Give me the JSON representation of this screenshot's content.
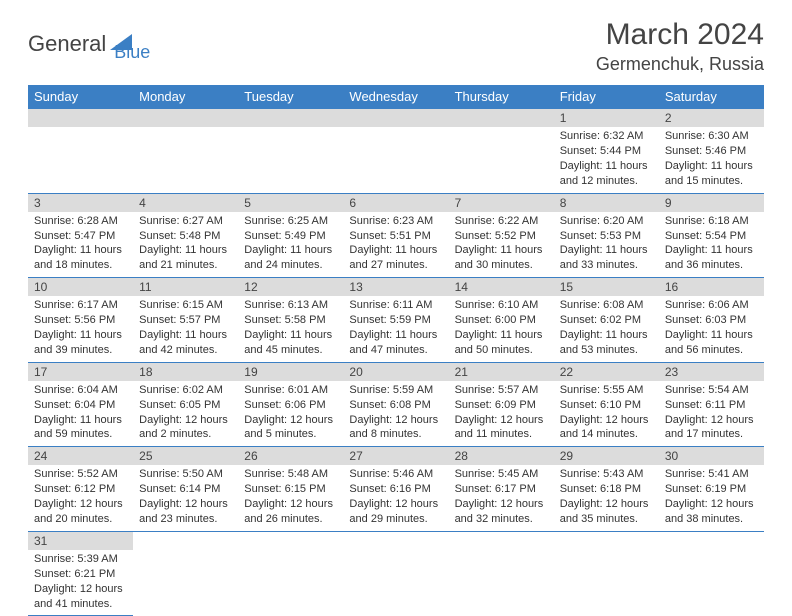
{
  "brand": {
    "general": "General",
    "blue": "Blue"
  },
  "title": "March 2024",
  "location": "Germenchuk, Russia",
  "weekdays": [
    "Sunday",
    "Monday",
    "Tuesday",
    "Wednesday",
    "Thursday",
    "Friday",
    "Saturday"
  ],
  "colors": {
    "header_bg": "#3b7fc4",
    "header_text": "#ffffff",
    "daynum_bg": "#dcdcdc",
    "row_divider": "#3b7fc4",
    "page_bg": "#ffffff",
    "text": "#333333"
  },
  "typography": {
    "title_fontsize": 30,
    "location_fontsize": 18,
    "weekday_fontsize": 13,
    "daynum_fontsize": 12,
    "body_fontsize": 11
  },
  "weeks": [
    [
      null,
      null,
      null,
      null,
      null,
      {
        "n": "1",
        "sr": "Sunrise: 6:32 AM",
        "ss": "Sunset: 5:44 PM",
        "d1": "Daylight: 11 hours",
        "d2": "and 12 minutes."
      },
      {
        "n": "2",
        "sr": "Sunrise: 6:30 AM",
        "ss": "Sunset: 5:46 PM",
        "d1": "Daylight: 11 hours",
        "d2": "and 15 minutes."
      }
    ],
    [
      {
        "n": "3",
        "sr": "Sunrise: 6:28 AM",
        "ss": "Sunset: 5:47 PM",
        "d1": "Daylight: 11 hours",
        "d2": "and 18 minutes."
      },
      {
        "n": "4",
        "sr": "Sunrise: 6:27 AM",
        "ss": "Sunset: 5:48 PM",
        "d1": "Daylight: 11 hours",
        "d2": "and 21 minutes."
      },
      {
        "n": "5",
        "sr": "Sunrise: 6:25 AM",
        "ss": "Sunset: 5:49 PM",
        "d1": "Daylight: 11 hours",
        "d2": "and 24 minutes."
      },
      {
        "n": "6",
        "sr": "Sunrise: 6:23 AM",
        "ss": "Sunset: 5:51 PM",
        "d1": "Daylight: 11 hours",
        "d2": "and 27 minutes."
      },
      {
        "n": "7",
        "sr": "Sunrise: 6:22 AM",
        "ss": "Sunset: 5:52 PM",
        "d1": "Daylight: 11 hours",
        "d2": "and 30 minutes."
      },
      {
        "n": "8",
        "sr": "Sunrise: 6:20 AM",
        "ss": "Sunset: 5:53 PM",
        "d1": "Daylight: 11 hours",
        "d2": "and 33 minutes."
      },
      {
        "n": "9",
        "sr": "Sunrise: 6:18 AM",
        "ss": "Sunset: 5:54 PM",
        "d1": "Daylight: 11 hours",
        "d2": "and 36 minutes."
      }
    ],
    [
      {
        "n": "10",
        "sr": "Sunrise: 6:17 AM",
        "ss": "Sunset: 5:56 PM",
        "d1": "Daylight: 11 hours",
        "d2": "and 39 minutes."
      },
      {
        "n": "11",
        "sr": "Sunrise: 6:15 AM",
        "ss": "Sunset: 5:57 PM",
        "d1": "Daylight: 11 hours",
        "d2": "and 42 minutes."
      },
      {
        "n": "12",
        "sr": "Sunrise: 6:13 AM",
        "ss": "Sunset: 5:58 PM",
        "d1": "Daylight: 11 hours",
        "d2": "and 45 minutes."
      },
      {
        "n": "13",
        "sr": "Sunrise: 6:11 AM",
        "ss": "Sunset: 5:59 PM",
        "d1": "Daylight: 11 hours",
        "d2": "and 47 minutes."
      },
      {
        "n": "14",
        "sr": "Sunrise: 6:10 AM",
        "ss": "Sunset: 6:00 PM",
        "d1": "Daylight: 11 hours",
        "d2": "and 50 minutes."
      },
      {
        "n": "15",
        "sr": "Sunrise: 6:08 AM",
        "ss": "Sunset: 6:02 PM",
        "d1": "Daylight: 11 hours",
        "d2": "and 53 minutes."
      },
      {
        "n": "16",
        "sr": "Sunrise: 6:06 AM",
        "ss": "Sunset: 6:03 PM",
        "d1": "Daylight: 11 hours",
        "d2": "and 56 minutes."
      }
    ],
    [
      {
        "n": "17",
        "sr": "Sunrise: 6:04 AM",
        "ss": "Sunset: 6:04 PM",
        "d1": "Daylight: 11 hours",
        "d2": "and 59 minutes."
      },
      {
        "n": "18",
        "sr": "Sunrise: 6:02 AM",
        "ss": "Sunset: 6:05 PM",
        "d1": "Daylight: 12 hours",
        "d2": "and 2 minutes."
      },
      {
        "n": "19",
        "sr": "Sunrise: 6:01 AM",
        "ss": "Sunset: 6:06 PM",
        "d1": "Daylight: 12 hours",
        "d2": "and 5 minutes."
      },
      {
        "n": "20",
        "sr": "Sunrise: 5:59 AM",
        "ss": "Sunset: 6:08 PM",
        "d1": "Daylight: 12 hours",
        "d2": "and 8 minutes."
      },
      {
        "n": "21",
        "sr": "Sunrise: 5:57 AM",
        "ss": "Sunset: 6:09 PM",
        "d1": "Daylight: 12 hours",
        "d2": "and 11 minutes."
      },
      {
        "n": "22",
        "sr": "Sunrise: 5:55 AM",
        "ss": "Sunset: 6:10 PM",
        "d1": "Daylight: 12 hours",
        "d2": "and 14 minutes."
      },
      {
        "n": "23",
        "sr": "Sunrise: 5:54 AM",
        "ss": "Sunset: 6:11 PM",
        "d1": "Daylight: 12 hours",
        "d2": "and 17 minutes."
      }
    ],
    [
      {
        "n": "24",
        "sr": "Sunrise: 5:52 AM",
        "ss": "Sunset: 6:12 PM",
        "d1": "Daylight: 12 hours",
        "d2": "and 20 minutes."
      },
      {
        "n": "25",
        "sr": "Sunrise: 5:50 AM",
        "ss": "Sunset: 6:14 PM",
        "d1": "Daylight: 12 hours",
        "d2": "and 23 minutes."
      },
      {
        "n": "26",
        "sr": "Sunrise: 5:48 AM",
        "ss": "Sunset: 6:15 PM",
        "d1": "Daylight: 12 hours",
        "d2": "and 26 minutes."
      },
      {
        "n": "27",
        "sr": "Sunrise: 5:46 AM",
        "ss": "Sunset: 6:16 PM",
        "d1": "Daylight: 12 hours",
        "d2": "and 29 minutes."
      },
      {
        "n": "28",
        "sr": "Sunrise: 5:45 AM",
        "ss": "Sunset: 6:17 PM",
        "d1": "Daylight: 12 hours",
        "d2": "and 32 minutes."
      },
      {
        "n": "29",
        "sr": "Sunrise: 5:43 AM",
        "ss": "Sunset: 6:18 PM",
        "d1": "Daylight: 12 hours",
        "d2": "and 35 minutes."
      },
      {
        "n": "30",
        "sr": "Sunrise: 5:41 AM",
        "ss": "Sunset: 6:19 PM",
        "d1": "Daylight: 12 hours",
        "d2": "and 38 minutes."
      }
    ],
    [
      {
        "n": "31",
        "sr": "Sunrise: 5:39 AM",
        "ss": "Sunset: 6:21 PM",
        "d1": "Daylight: 12 hours",
        "d2": "and 41 minutes."
      },
      null,
      null,
      null,
      null,
      null,
      null
    ]
  ]
}
